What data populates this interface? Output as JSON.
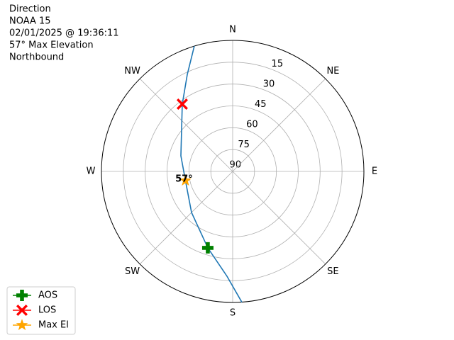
{
  "chart_data": {
    "type": "polar",
    "title": [
      "Direction",
      "NOAA 15",
      "02/01/2025 @ 19:36:11",
      "57° Max Elevation",
      "Northbound"
    ],
    "thetaticks": [
      {
        "value": 0,
        "label": "N"
      },
      {
        "value": 45,
        "label": "NE"
      },
      {
        "value": 90,
        "label": "E"
      },
      {
        "value": 135,
        "label": "SE"
      },
      {
        "value": 180,
        "label": "S"
      },
      {
        "value": 225,
        "label": "SW"
      },
      {
        "value": 270,
        "label": "W"
      },
      {
        "value": 315,
        "label": "NW"
      }
    ],
    "rlim": [
      90,
      0
    ],
    "rticks": [
      15,
      30,
      45,
      60,
      75,
      90
    ],
    "grid": true,
    "legend": "lower left",
    "series": [
      {
        "color": "#1f77b4",
        "marker": "none",
        "theta": [
          176,
          183.1,
          198,
          225,
          259,
          286.8,
          323.2,
          335,
          343
        ],
        "r": [
          0,
          17.9,
          34.8,
          50.1,
          57,
          52.9,
          32.3,
          16.4,
          0
        ]
      },
      {
        "name": "AOS",
        "color": "green",
        "marker": "plus",
        "theta": [
          198
        ],
        "r": [
          34.8
        ]
      },
      {
        "name": "LOS",
        "color": "red",
        "marker": "x",
        "theta": [
          323.2
        ],
        "r": [
          32.3
        ]
      },
      {
        "name": "Max El",
        "color": "orange",
        "marker": "star",
        "theta": [
          259
        ],
        "r": [
          57
        ]
      }
    ],
    "annotations": [
      {
        "text": "57°"
      }
    ]
  }
}
